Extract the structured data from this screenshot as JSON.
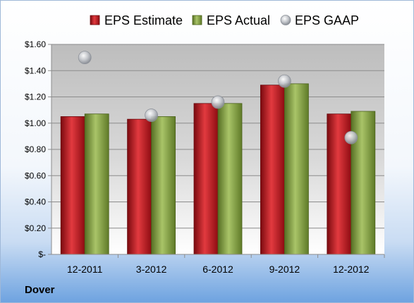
{
  "company": "Dover",
  "chart_data": {
    "type": "bar",
    "categories": [
      "12-2011",
      "3-2012",
      "6-2012",
      "9-2012",
      "12-2012"
    ],
    "series": [
      {
        "name": "EPS Estimate",
        "kind": "bar",
        "color": "#c0151c",
        "values": [
          1.05,
          1.03,
          1.15,
          1.29,
          1.07
        ]
      },
      {
        "name": "EPS Actual",
        "kind": "bar",
        "color": "#7a9a3a",
        "values": [
          1.07,
          1.05,
          1.15,
          1.3,
          1.09
        ]
      },
      {
        "name": "EPS GAAP",
        "kind": "scatter",
        "color": "#b9bec6",
        "values": [
          1.5,
          1.06,
          1.16,
          1.32,
          0.89
        ]
      }
    ],
    "yticks": [
      "$-",
      "$0.20",
      "$0.40",
      "$0.60",
      "$0.80",
      "$1.00",
      "$1.20",
      "$1.40",
      "$1.60"
    ],
    "ylim": [
      0,
      1.6
    ],
    "grid": true,
    "legend_position": "top"
  }
}
